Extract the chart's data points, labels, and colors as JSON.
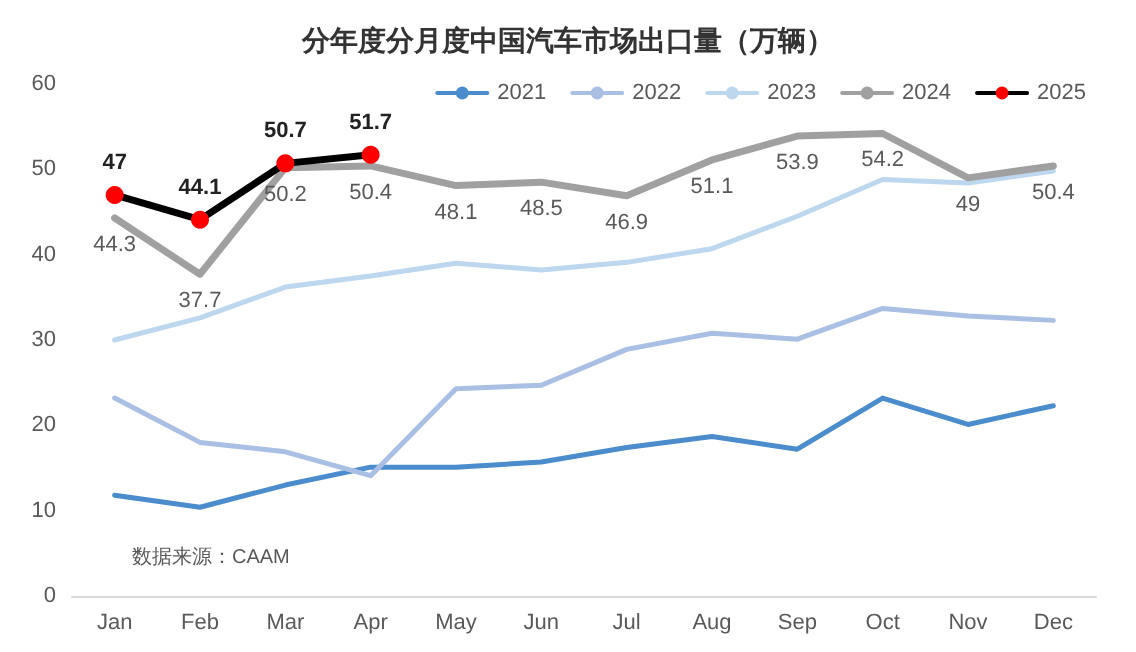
{
  "chart_data": {
    "type": "line",
    "title": "分年度分月度中国汽车市场出口量（万辆）",
    "categories": [
      "Jan",
      "Feb",
      "Mar",
      "Apr",
      "May",
      "Jun",
      "Jul",
      "Aug",
      "Sep",
      "Oct",
      "Nov",
      "Dec"
    ],
    "series": [
      {
        "name": "2021",
        "color": "#4a8ccc",
        "values": [
          11.8,
          10.4,
          13,
          15.1,
          15.1,
          15.7,
          17.4,
          18.7,
          17.2,
          23.2,
          20.1,
          22.3
        ]
      },
      {
        "name": "2022",
        "color": "#a9bfe3",
        "values": [
          23.2,
          18,
          16.9,
          14.1,
          24.3,
          24.7,
          28.9,
          30.8,
          30.1,
          33.7,
          32.8,
          32.3
        ]
      },
      {
        "name": "2023",
        "color": "#bdd7ee",
        "values": [
          30,
          32.6,
          36.2,
          37.5,
          39,
          38.2,
          39.1,
          40.7,
          44.5,
          48.8,
          48.4,
          49.8
        ]
      },
      {
        "name": "2024",
        "color": "#a0a0a0",
        "values": [
          44.3,
          37.7,
          50.2,
          50.4,
          48.1,
          48.5,
          46.9,
          51.1,
          53.9,
          54.2,
          49,
          50.4
        ],
        "value_labels": [
          "44.3",
          "37.7",
          "50.2",
          "50.4",
          "48.1",
          "48.5",
          "46.9",
          "51.1",
          "53.9",
          "54.2",
          "49",
          "50.4"
        ]
      },
      {
        "name": "2025",
        "color": "#000000",
        "marker": "circle",
        "colors": [
          "#ff0000",
          "#ff0000",
          "#ff0000",
          "#ff0000",
          null,
          null,
          null,
          null,
          null,
          null,
          null,
          null
        ],
        "values": [
          47,
          44.1,
          50.7,
          51.7,
          null,
          null,
          null,
          null,
          null,
          null,
          null,
          null
        ],
        "value_labels": [
          "47",
          "44.1",
          "50.7",
          "51.7",
          null,
          null,
          null,
          null,
          null,
          null,
          null,
          null
        ]
      }
    ],
    "ylim": [
      0,
      60
    ],
    "yticks": [
      0,
      10,
      20,
      30,
      40,
      50,
      60
    ],
    "grid": false,
    "legend": "top right",
    "marker": "none",
    "annotations": [
      "数据来源：CAAM"
    ]
  }
}
